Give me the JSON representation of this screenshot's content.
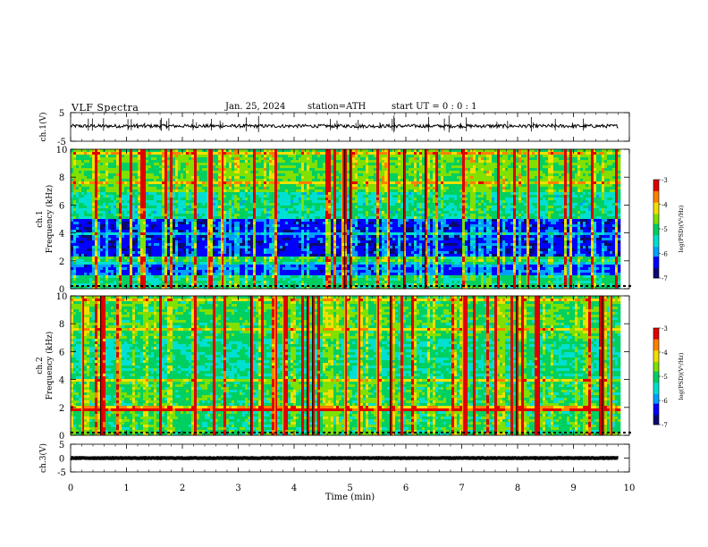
{
  "header": {
    "title": "VLF  Spectra",
    "date": "Jan. 25, 2024",
    "station": "station=ATH",
    "start": "start  UT  =   0 : 0  : 1"
  },
  "colors": {
    "colormap": [
      "#0a0a6e",
      "#0000ff",
      "#00a0ff",
      "#00e0d0",
      "#00d060",
      "#80e000",
      "#f0e000",
      "#ff8000",
      "#e00000",
      "#ffffff"
    ],
    "trace": "#000000"
  },
  "chart_data": [
    {
      "type": "line",
      "name": "ch1-waveform",
      "ylabel": "ch.1(V)",
      "ylim": [
        -5,
        5
      ],
      "yticks": [
        "5",
        "-5"
      ],
      "x_range_min": [
        0,
        9.8
      ],
      "baseline": 0.3,
      "noise_amplitude": 0.6,
      "spikes": 40
    },
    {
      "type": "heatmap",
      "name": "ch1-spectrogram",
      "ylabel": "ch.1\nFrequency  (kHz)",
      "ylabel_lines": [
        "ch.1",
        "Frequency  (kHz)"
      ],
      "ylim": [
        0,
        10
      ],
      "yticks": [
        "0",
        "2",
        "4",
        "6",
        "8",
        "10"
      ],
      "x_range_min": [
        0,
        9.8
      ],
      "z_label": "log(PSD)(V²/Hz)",
      "zlim": [
        -7,
        -3
      ],
      "zticks": [
        "-3",
        "-4",
        "-5",
        "-6",
        "-7"
      ],
      "profile": [
        {
          "f": [
            0,
            1
          ],
          "level": -5.2
        },
        {
          "f": [
            1,
            2
          ],
          "level": -6.2
        },
        {
          "f": [
            2,
            2.4
          ],
          "level": -5.0
        },
        {
          "f": [
            2.4,
            5
          ],
          "level": -6.4
        },
        {
          "f": [
            5,
            7
          ],
          "level": -5.3
        },
        {
          "f": [
            7,
            10
          ],
          "level": -4.8
        }
      ]
    },
    {
      "type": "heatmap",
      "name": "ch2-spectrogram",
      "ylabel": "ch.2\nFrequency  (kHz)",
      "ylabel_lines": [
        "ch.2",
        "Frequency  (kHz)"
      ],
      "ylim": [
        0,
        10
      ],
      "yticks": [
        "0",
        "2",
        "4",
        "6",
        "8",
        "10"
      ],
      "x_range_min": [
        0,
        9.8
      ],
      "z_label": "log(PSD)(V²/Hz)",
      "zlim": [
        -7,
        -3
      ],
      "zticks": [
        "-3",
        "-4",
        "-5",
        "-6",
        "-7"
      ],
      "profile": [
        {
          "f": [
            0,
            1.8
          ],
          "level": -5.0
        },
        {
          "f": [
            1.8,
            2.2
          ],
          "level": -4.0
        },
        {
          "f": [
            2.2,
            4
          ],
          "level": -5.0
        },
        {
          "f": [
            4,
            7
          ],
          "level": -5.2
        },
        {
          "f": [
            7,
            10
          ],
          "level": -4.9
        }
      ]
    },
    {
      "type": "line",
      "name": "ch3-waveform",
      "ylabel": "ch.3(V)",
      "ylim": [
        -5,
        5
      ],
      "yticks": [
        "5",
        "0",
        "-5"
      ],
      "x_range_min": [
        0,
        9.8
      ],
      "baseline": 0,
      "noise_amplitude": 0.1
    }
  ],
  "xaxis": {
    "label": "Time  (min)",
    "ticks": [
      "0",
      "1",
      "2",
      "3",
      "4",
      "5",
      "6",
      "7",
      "8",
      "9",
      "10"
    ],
    "xlim": [
      0,
      10
    ]
  }
}
